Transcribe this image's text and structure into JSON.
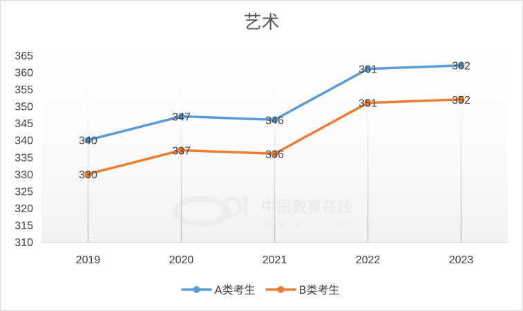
{
  "chart_data": {
    "type": "line",
    "title": "艺术",
    "categories": [
      "2019",
      "2020",
      "2021",
      "2022",
      "2023"
    ],
    "series": [
      {
        "name": "A类考生",
        "color": "#5b9bd5",
        "values": [
          340,
          347,
          346,
          361,
          362
        ]
      },
      {
        "name": "B类考生",
        "color": "#ed7d31",
        "values": [
          330,
          337,
          336,
          351,
          352
        ]
      }
    ],
    "yticks": [
      310,
      315,
      320,
      325,
      330,
      335,
      340,
      345,
      350,
      355,
      360,
      365
    ],
    "ylim": [
      310,
      365
    ],
    "xlabel": "",
    "ylabel": "",
    "data_labels": true,
    "legend": "bottom",
    "grid": "vertical"
  },
  "watermark": {
    "logo": "eol",
    "text": "中国教育在线",
    "url": "w w w . e o l . c n"
  }
}
